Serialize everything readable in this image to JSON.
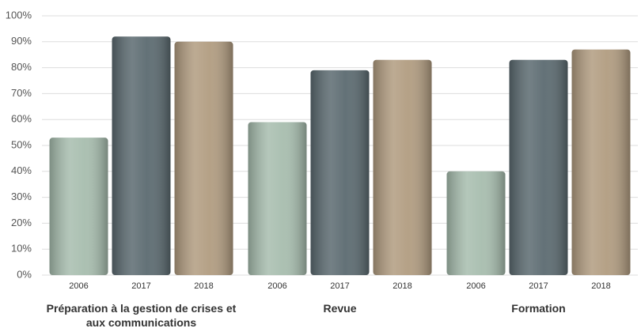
{
  "chart_data": {
    "type": "bar",
    "categories": [
      "Préparation à la gestion de crises et aux communications",
      "Revue",
      "Formation"
    ],
    "series": [
      {
        "name": "2006",
        "color": "#a7bdae",
        "values": [
          53,
          59,
          40
        ]
      },
      {
        "name": "2017",
        "color": "#5b6a70",
        "values": [
          92,
          79,
          83
        ]
      },
      {
        "name": "2018",
        "color": "#b19c80",
        "values": [
          90,
          83,
          87
        ]
      }
    ],
    "ylim": [
      0,
      100
    ],
    "yticks": [
      {
        "value": 0,
        "label": "0%"
      },
      {
        "value": 10,
        "label": "10%"
      },
      {
        "value": 20,
        "label": "20%"
      },
      {
        "value": 30,
        "label": "30%"
      },
      {
        "value": 40,
        "label": "40%"
      },
      {
        "value": 50,
        "label": "50%"
      },
      {
        "value": 60,
        "label": "60%"
      },
      {
        "value": 70,
        "label": "70%"
      },
      {
        "value": 80,
        "label": "80%"
      },
      {
        "value": 90,
        "label": "90%"
      },
      {
        "value": 100,
        "label": "100%"
      }
    ],
    "grid": true
  }
}
